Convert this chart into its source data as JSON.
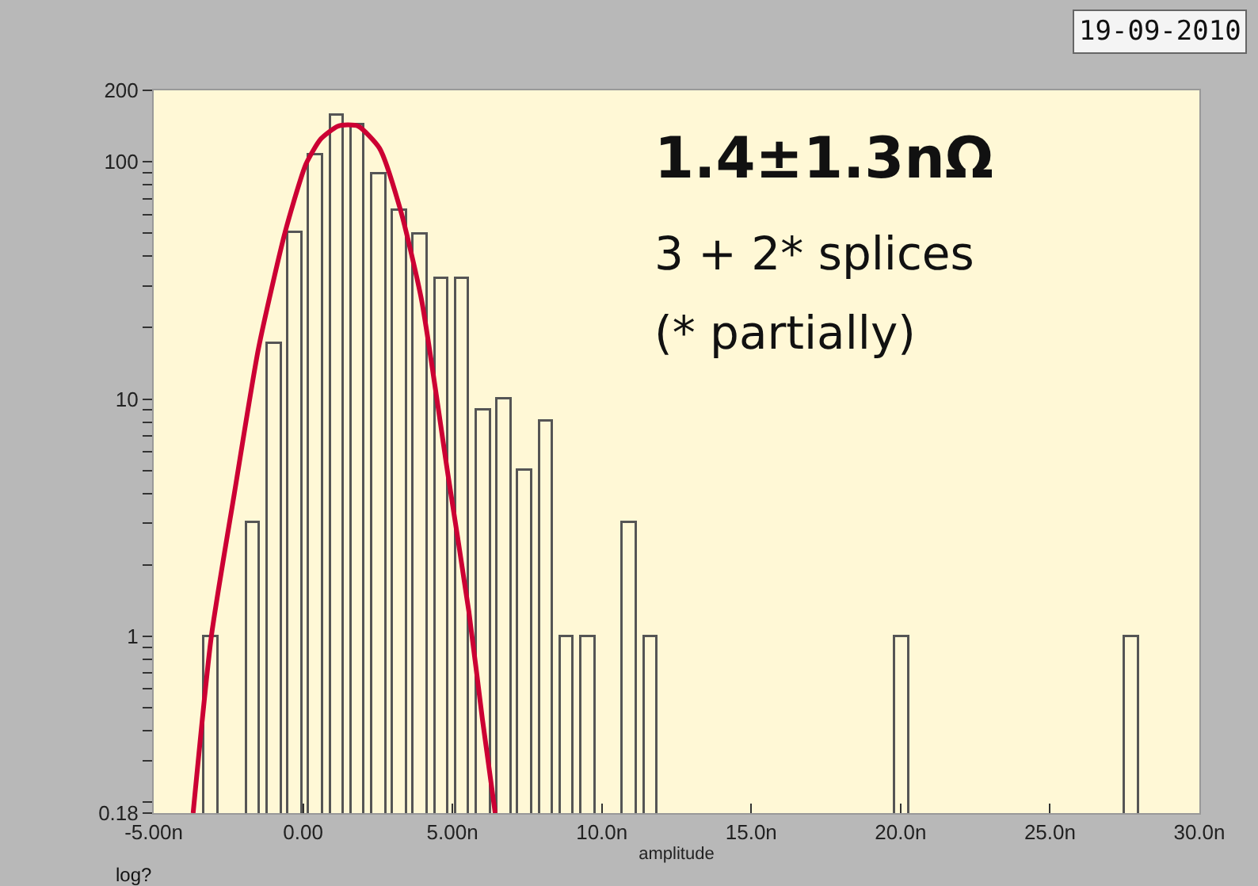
{
  "chart_data": {
    "type": "histogram",
    "xlabel": "amplitude",
    "bins": [
      -3.4,
      -2.7,
      -2.0,
      -1.3,
      -0.6,
      0.1,
      0.8,
      1.5,
      2.2,
      2.9,
      3.6,
      4.3,
      5.0,
      5.7,
      6.4,
      7.1,
      7.8,
      8.5,
      9.2,
      9.9,
      10.6,
      11.3,
      12.0,
      12.7,
      13.4,
      14.1,
      14.8,
      15.5,
      16.2,
      16.9,
      17.6,
      18.3,
      19.0,
      19.7,
      20.4,
      21.1,
      21.8,
      22.5,
      23.2,
      23.9,
      24.6,
      25.3,
      26.0,
      26.7,
      27.4,
      28.1
    ],
    "values": [
      1,
      null,
      3,
      17,
      50,
      106,
      156,
      143,
      89,
      62,
      49,
      32,
      32,
      9,
      10,
      5,
      8,
      1,
      1,
      null,
      3,
      1,
      null,
      null,
      null,
      null,
      null,
      null,
      null,
      null,
      null,
      null,
      null,
      1,
      null,
      null,
      null,
      null,
      null,
      null,
      null,
      null,
      null,
      null,
      1
    ],
    "color": "#fff8d6",
    "series": [
      {
        "type": "line",
        "color": "#cc0033",
        "x": [
          -3.68,
          -3.07,
          -2.3,
          -1.49,
          -0.6,
          0.1,
          0.6,
          1.15,
          1.5,
          1.86,
          2.56,
          3.27,
          3.97,
          4.85,
          5.55,
          6.0,
          6.43
        ],
        "values": [
          0.18,
          1,
          4,
          16.4,
          50.6,
          98,
          125,
          141,
          143,
          141,
          114,
          62,
          26,
          4.8,
          1.27,
          0.45,
          0.18
        ]
      }
    ],
    "log": "y",
    "xlim": [
      -5,
      30
    ],
    "ylim": [
      0.18,
      200
    ],
    "xticks": [
      {
        "value": -5,
        "label": "-5.00n"
      },
      {
        "value": 0,
        "label": "0.00"
      },
      {
        "value": 5,
        "label": "5.00n"
      },
      {
        "value": 10,
        "label": "10.0n"
      },
      {
        "value": 15,
        "label": "15.0n"
      },
      {
        "value": 20,
        "label": "20.0n"
      },
      {
        "value": 25,
        "label": "25.0n"
      },
      {
        "value": 30,
        "label": "30.0n"
      }
    ],
    "yticks": [
      0.18,
      {
        "value": 0.2,
        "label": null
      },
      {
        "value": 0.3,
        "label": null
      },
      {
        "value": 0.4,
        "label": null
      },
      {
        "value": 0.5,
        "label": null
      },
      {
        "value": 0.6,
        "label": null
      },
      {
        "value": 0.7,
        "label": null
      },
      {
        "value": 0.8,
        "label": null
      },
      {
        "value": 0.9,
        "label": null
      },
      1,
      {
        "value": 2,
        "label": null
      },
      {
        "value": 3,
        "label": null
      },
      {
        "value": 4,
        "label": null
      },
      {
        "value": 5,
        "label": null
      },
      {
        "value": 6,
        "label": null
      },
      {
        "value": 7,
        "label": null
      },
      {
        "value": 8,
        "label": null
      },
      {
        "value": 9,
        "label": null
      },
      10,
      {
        "value": 20,
        "label": null
      },
      {
        "value": 30,
        "label": null
      },
      {
        "value": 40,
        "label": null
      },
      {
        "value": 50,
        "label": null
      },
      {
        "value": 60,
        "label": null
      },
      {
        "value": 70,
        "label": null
      },
      {
        "value": 80,
        "label": null
      },
      {
        "value": 90,
        "label": null
      },
      100,
      200
    ],
    "grid": false,
    "annotations": [
      "1.4±1.3nΩ",
      "3 + 2* splices",
      "(* partially)",
      "19-09-2010",
      "log?"
    ]
  }
}
